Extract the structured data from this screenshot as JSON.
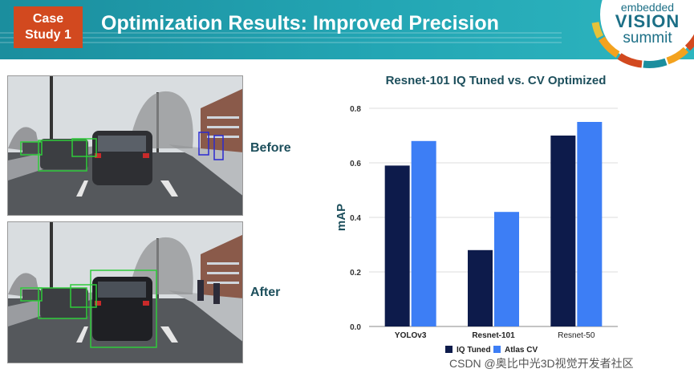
{
  "header": {
    "case_line1": "Case",
    "case_line2": "Study 1",
    "title": "Optimization Results: Improved Precision"
  },
  "logo": {
    "line1": "embedded",
    "line2": "VISION",
    "line3": "summit"
  },
  "photos": {
    "before_label": "Before",
    "after_label": "After"
  },
  "chart_data": {
    "type": "bar",
    "title": "Resnet-101 IQ Tuned vs. CV Optimized",
    "xlabel": "",
    "ylabel": "mAP",
    "ylim": [
      0,
      0.8
    ],
    "yticks": [
      "0.0",
      "0.2",
      "0.4",
      "0.6",
      "0.8"
    ],
    "categories": [
      "YOLOv3",
      "Resnet-101",
      "Resnet-50"
    ],
    "series": [
      {
        "name": "IQ Tuned",
        "color": "#0d1b4b",
        "values": [
          0.59,
          0.28,
          0.7
        ]
      },
      {
        "name": "Atlas CV",
        "color": "#3d7ef5",
        "values": [
          0.68,
          0.42,
          0.75
        ]
      }
    ],
    "legend": "bottom"
  },
  "watermark": "CSDN @奥比中光3D视觉开发者社区"
}
